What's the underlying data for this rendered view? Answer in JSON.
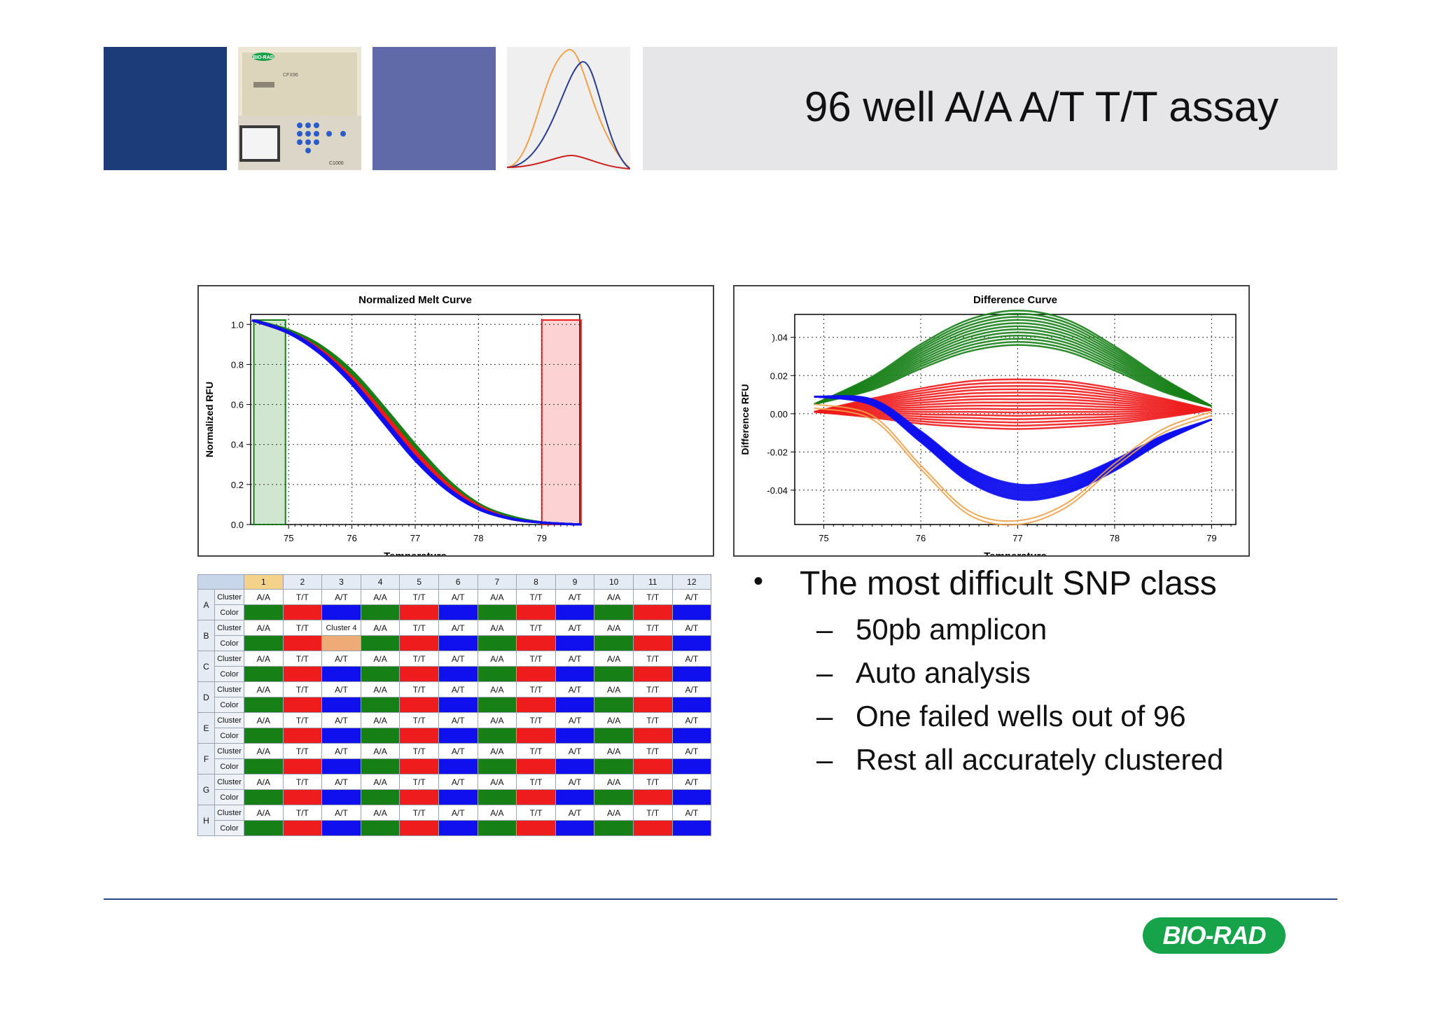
{
  "slide": {
    "title": "96 well A/A A/T T/T assay"
  },
  "header_images": {
    "instrument": {
      "logo_text": "BIO-RAD",
      "label1": "CFX96",
      "label2": "C1000"
    },
    "colors": {
      "navy": "#1b3c78",
      "periwinkle": "#606aa8",
      "band": "#e6e6e8"
    }
  },
  "bullets": {
    "main": "The most difficult SNP class",
    "sub": [
      "50pb amplicon",
      "Auto analysis",
      "One failed wells out of 96",
      "Rest all accurately clustered"
    ]
  },
  "logo": {
    "text": "BIO-RAD"
  },
  "colors": {
    "aa": "#168016",
    "tt": "#ee1c1c",
    "at": "#1010ee",
    "orange": "#f0a048",
    "failed": "#eeaa77"
  },
  "chart_data": [
    {
      "type": "line",
      "title": "Normalized Melt Curve",
      "xlabel": "Temperature",
      "ylabel": "Normalized RFU",
      "xlim": [
        74.4,
        79.6
      ],
      "ylim": [
        0,
        1.05
      ],
      "xticks": [
        "75",
        "76",
        "77",
        "78",
        "79"
      ],
      "yticks": [
        "0.0",
        "0.2",
        "0.4",
        "0.6",
        "0.8",
        "1.0"
      ],
      "grid": true,
      "regions": [
        {
          "name": "pre-melt",
          "x": [
            74.45,
            74.95
          ],
          "color": "#168016"
        },
        {
          "name": "post-melt",
          "x": [
            79.0,
            79.62
          ],
          "color": "#ee1c1c"
        }
      ],
      "series": [
        {
          "group": "A/A",
          "color": "#168016",
          "x": [
            74.45,
            75,
            75.5,
            76,
            76.5,
            77,
            77.5,
            78,
            78.5,
            79,
            79.6
          ],
          "y": [
            1.02,
            0.97,
            0.89,
            0.76,
            0.58,
            0.39,
            0.22,
            0.1,
            0.04,
            0.01,
            0.0
          ]
        },
        {
          "group": "T/T",
          "color": "#ee1c1c",
          "x": [
            74.45,
            75,
            75.5,
            76,
            76.5,
            77,
            77.5,
            78,
            78.5,
            79,
            79.6
          ],
          "y": [
            1.02,
            0.96,
            0.87,
            0.73,
            0.55,
            0.36,
            0.2,
            0.09,
            0.03,
            0.01,
            0.0
          ]
        },
        {
          "group": "A/T",
          "color": "#1010ee",
          "x": [
            74.45,
            75,
            75.5,
            76,
            76.5,
            77,
            77.5,
            78,
            78.5,
            79,
            79.6
          ],
          "y": [
            1.02,
            0.96,
            0.86,
            0.71,
            0.52,
            0.33,
            0.18,
            0.08,
            0.03,
            0.01,
            0.0
          ]
        }
      ]
    },
    {
      "type": "line",
      "title": "Difference Curve",
      "xlabel": "Temperature",
      "ylabel": "Difference RFU",
      "xlim": [
        74.7,
        79.25
      ],
      "ylim": [
        -0.058,
        0.052
      ],
      "xticks": [
        "75",
        "76",
        "77",
        "78",
        "79"
      ],
      "yticks": [
        ").04",
        "0.02",
        "0.00",
        "-0.02",
        "-0.04"
      ],
      "ytick_values": [
        0.04,
        0.02,
        0.0,
        -0.02,
        -0.04
      ],
      "grid": true,
      "series": [
        {
          "group": "A/A",
          "color": "#168016",
          "x": [
            74.9,
            75.5,
            76,
            76.5,
            77,
            77.5,
            78,
            78.5,
            79
          ],
          "y": [
            0.005,
            0.016,
            0.03,
            0.041,
            0.045,
            0.041,
            0.029,
            0.015,
            0.004
          ]
        },
        {
          "group": "T/T",
          "color": "#ee1c1c",
          "x": [
            74.9,
            75.5,
            76,
            76.5,
            77,
            77.5,
            78,
            78.5,
            79
          ],
          "y": [
            0.001,
            0.003,
            0.004,
            0.005,
            0.005,
            0.005,
            0.004,
            0.003,
            0.002
          ]
        },
        {
          "group": "A/T",
          "color": "#1010ee",
          "x": [
            74.9,
            75.5,
            76,
            76.5,
            77,
            77.5,
            78,
            78.5,
            79
          ],
          "y": [
            0.009,
            0.006,
            -0.012,
            -0.032,
            -0.041,
            -0.038,
            -0.027,
            -0.013,
            -0.003
          ]
        },
        {
          "group": "failed",
          "color": "#f0a048",
          "x": [
            74.9,
            75.5,
            76,
            76.5,
            77,
            77.5,
            78,
            78.5,
            79
          ],
          "y": [
            0.004,
            -0.002,
            -0.028,
            -0.052,
            -0.057,
            -0.048,
            -0.027,
            -0.009,
            0.0
          ]
        }
      ]
    },
    {
      "type": "table",
      "columns": [
        "1",
        "2",
        "3",
        "4",
        "5",
        "6",
        "7",
        "8",
        "9",
        "10",
        "11",
        "12"
      ],
      "rows": [
        "A",
        "B",
        "C",
        "D",
        "E",
        "F",
        "G",
        "H"
      ],
      "row_labels": [
        "Cluster",
        "Color"
      ],
      "cells": [
        [
          "A/A",
          "T/T",
          "A/T",
          "A/A",
          "T/T",
          "A/T",
          "A/A",
          "T/T",
          "A/T",
          "A/A",
          "T/T",
          "A/T"
        ],
        [
          "A/A",
          "T/T",
          "Cluster 4",
          "A/A",
          "T/T",
          "A/T",
          "A/A",
          "T/T",
          "A/T",
          "A/A",
          "T/T",
          "A/T"
        ],
        [
          "A/A",
          "T/T",
          "A/T",
          "A/A",
          "T/T",
          "A/T",
          "A/A",
          "T/T",
          "A/T",
          "A/A",
          "T/T",
          "A/T"
        ],
        [
          "A/A",
          "T/T",
          "A/T",
          "A/A",
          "T/T",
          "A/T",
          "A/A",
          "T/T",
          "A/T",
          "A/A",
          "T/T",
          "A/T"
        ],
        [
          "A/A",
          "T/T",
          "A/T",
          "A/A",
          "T/T",
          "A/T",
          "A/A",
          "T/T",
          "A/T",
          "A/A",
          "T/T",
          "A/T"
        ],
        [
          "A/A",
          "T/T",
          "A/T",
          "A/A",
          "T/T",
          "A/T",
          "A/A",
          "T/T",
          "A/T",
          "A/A",
          "T/T",
          "A/T"
        ],
        [
          "A/A",
          "T/T",
          "A/T",
          "A/A",
          "T/T",
          "A/T",
          "A/A",
          "T/T",
          "A/T",
          "A/A",
          "T/T",
          "A/T"
        ],
        [
          "A/A",
          "T/T",
          "A/T",
          "A/A",
          "T/T",
          "A/T",
          "A/A",
          "T/T",
          "A/T",
          "A/A",
          "T/T",
          "A/T"
        ]
      ]
    }
  ]
}
